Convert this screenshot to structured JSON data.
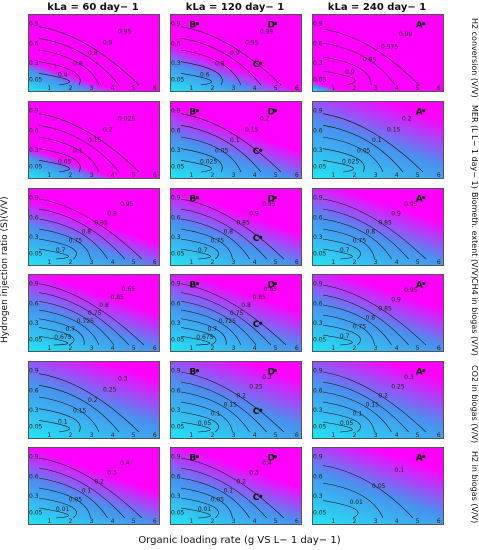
{
  "chart_data": {
    "type": "heatmap",
    "columns": [
      "kLa = 60 day− 1",
      "kLa = 120 day− 1",
      "kLa = 240 day− 1"
    ],
    "rows": [
      "H2 conversion (V/V)",
      "MER (L L− 1 day− 1)",
      "Biometh. extent (V/V)",
      "CH4 in biogas (V/V)",
      "CO2 in biogas (V/V)",
      "H2 in biogas (V/V)"
    ],
    "xlabel": "Organic loading rate (g VS L− 1 day− 1)",
    "ylabel": "Hydrogen injection ratio (S)(V/V)",
    "xticks": [
      "1",
      "2",
      "3",
      "4",
      "5",
      "6"
    ],
    "yticks": [
      "0.05",
      "0.3",
      "0.6",
      "0.9"
    ],
    "xlim": [
      0.6,
      6.1
    ],
    "ylim": [
      0.0,
      0.97
    ],
    "colors": {
      "low": "#22e5f3",
      "mid": "#4a90ee",
      "high": "#ff00ff"
    },
    "panels": [
      [
        {
          "contours": [
            "0.4",
            "0.6",
            "0.8",
            "0.9",
            "0.95"
          ],
          "points": []
        },
        {
          "contours": [
            "0.6",
            "0.8",
            "0.9",
            "0.95",
            "0.99"
          ],
          "points": [
            {
              "label": "B",
              "x": 1,
              "y": 0.9
            },
            {
              "label": "D",
              "x": 4.7,
              "y": 0.9
            },
            {
              "label": "C",
              "x": 4,
              "y": 0.3
            }
          ]
        },
        {
          "contours": [
            "0.9",
            "0.95",
            "0.975",
            "0.99"
          ],
          "points": [
            {
              "label": "A",
              "x": 5,
              "y": 0.9
            }
          ]
        }
      ],
      [
        {
          "contours": [
            "0.05",
            "0.1",
            "0.15",
            "0.2",
            "0.025"
          ],
          "points": []
        },
        {
          "contours": [
            "0.025",
            "0.05",
            "0.1",
            "0.15",
            "0.2"
          ],
          "points": [
            {
              "label": "B",
              "x": 1,
              "y": 0.9
            },
            {
              "label": "D",
              "x": 4.7,
              "y": 0.9
            },
            {
              "label": "C",
              "x": 4,
              "y": 0.3
            }
          ]
        },
        {
          "contours": [
            "0.025",
            "0.05",
            "0.1",
            "0.15",
            "0.2"
          ],
          "points": [
            {
              "label": "A",
              "x": 5,
              "y": 0.9
            }
          ]
        }
      ],
      [
        {
          "contours": [
            "0.7",
            "0.75",
            "0.8",
            "0.85",
            "0.9",
            "0.95"
          ],
          "points": []
        },
        {
          "contours": [
            "0.7",
            "0.75",
            "0.8",
            "0.85",
            "0.9",
            "0.95"
          ],
          "points": [
            {
              "label": "B",
              "x": 1,
              "y": 0.9
            },
            {
              "label": "D",
              "x": 4.7,
              "y": 0.9
            },
            {
              "label": "C",
              "x": 4,
              "y": 0.3
            }
          ]
        },
        {
          "contours": [
            "0.7",
            "0.75",
            "0.8",
            "0.85",
            "0.9",
            "0.95"
          ],
          "points": [
            {
              "label": "A",
              "x": 5,
              "y": 0.9
            }
          ]
        }
      ],
      [
        {
          "contours": [
            "0.675",
            "0.7",
            "0.725",
            "0.75",
            "0.8",
            "0.85",
            "0.65"
          ],
          "points": []
        },
        {
          "contours": [
            "0.675",
            "0.7",
            "0.725",
            "0.75",
            "0.8",
            "0.85",
            "0.65"
          ],
          "points": [
            {
              "label": "B",
              "x": 1,
              "y": 0.9
            },
            {
              "label": "D",
              "x": 4.7,
              "y": 0.9
            },
            {
              "label": "C",
              "x": 4,
              "y": 0.3
            }
          ]
        },
        {
          "contours": [
            "0.7",
            "0.75",
            "0.8",
            "0.85",
            "0.9",
            "0.95"
          ],
          "points": [
            {
              "label": "A",
              "x": 5,
              "y": 0.9
            }
          ]
        }
      ],
      [
        {
          "contours": [
            "0.1",
            "0.15",
            "0.2",
            "0.25",
            "0.3"
          ],
          "points": []
        },
        {
          "contours": [
            "0.05",
            "0.1",
            "0.15",
            "0.2",
            "0.25",
            "0.3"
          ],
          "points": [
            {
              "label": "B",
              "x": 1,
              "y": 0.9
            },
            {
              "label": "D",
              "x": 4.7,
              "y": 0.9
            },
            {
              "label": "C",
              "x": 4,
              "y": 0.3
            }
          ]
        },
        {
          "contours": [
            "0.05",
            "0.1",
            "0.15",
            "0.2",
            "0.25",
            "0.3"
          ],
          "points": [
            {
              "label": "A",
              "x": 5,
              "y": 0.9
            }
          ]
        }
      ],
      [
        {
          "contours": [
            "0.01",
            "0.05",
            "0.1",
            "0.2",
            "0.3",
            "0.4"
          ],
          "points": []
        },
        {
          "contours": [
            "0.01",
            "0.05",
            "0.1",
            "0.2",
            "0.3",
            "0.4"
          ],
          "points": [
            {
              "label": "B",
              "x": 1,
              "y": 0.9
            },
            {
              "label": "D",
              "x": 4.7,
              "y": 0.9
            },
            {
              "label": "C",
              "x": 4,
              "y": 0.3
            }
          ]
        },
        {
          "contours": [
            "0.01",
            "0.05",
            "0.1"
          ],
          "points": [
            {
              "label": "A",
              "x": 5,
              "y": 0.9
            }
          ]
        }
      ]
    ]
  }
}
